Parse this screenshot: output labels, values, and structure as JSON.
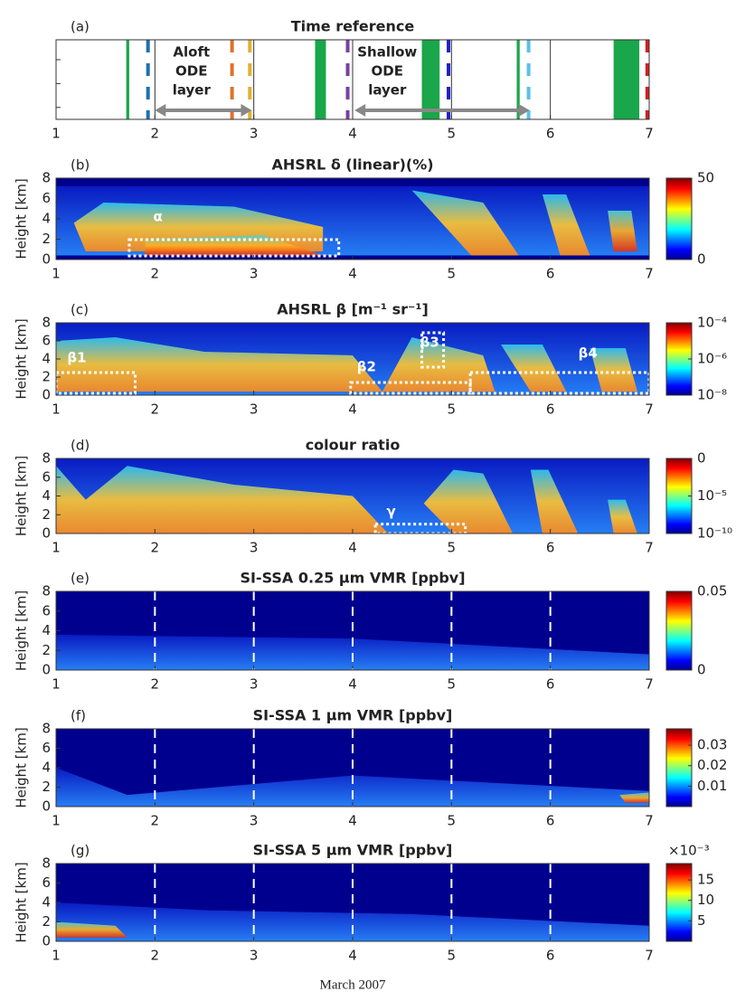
{
  "chart_data": [
    {
      "type": "timeline",
      "panel_label": "(a)",
      "title": "Time reference",
      "xlim": [
        1,
        7
      ],
      "xticks": [
        1,
        2,
        3,
        4,
        5,
        6,
        7
      ],
      "grid": true,
      "green_bands": [
        [
          1.71,
          1.74
        ],
        [
          3.62,
          3.73
        ],
        [
          4.7,
          4.88
        ],
        [
          5.66,
          5.69
        ],
        [
          6.64,
          6.9
        ]
      ],
      "band_color": "#1aa64a",
      "dashed_lines": [
        {
          "x": 1.93,
          "color": "#1f6fb0"
        },
        {
          "x": 2.78,
          "color": "#e0702a"
        },
        {
          "x": 2.96,
          "color": "#e0b030"
        },
        {
          "x": 3.95,
          "color": "#7b3fa0"
        },
        {
          "x": 4.97,
          "color": "#2020c8"
        },
        {
          "x": 5.78,
          "color": "#5bc0e8"
        },
        {
          "x": 6.98,
          "color": "#d02020"
        }
      ],
      "arrows": [
        [
          2.0,
          2.98
        ],
        [
          4.02,
          5.79
        ]
      ],
      "annotations": [
        {
          "lines": [
            "Aloft",
            "ODE",
            "layer"
          ],
          "x": 2.37
        },
        {
          "lines": [
            "Shallow",
            "ODE",
            "layer"
          ],
          "x": 4.35
        }
      ]
    },
    {
      "type": "heatmap",
      "panel_label": "(b)",
      "title": "AHSRL δ (linear)(%)",
      "ylabel": "Height [km]",
      "xlim": [
        1,
        7
      ],
      "xticks": [
        1,
        2,
        3,
        4,
        5,
        6,
        7
      ],
      "ylim": [
        0,
        8
      ],
      "yticks": [
        0,
        2,
        4,
        6,
        8
      ],
      "clim": [
        0,
        50
      ],
      "cticks": [
        0,
        50
      ],
      "annotations": [
        {
          "text": "α",
          "x": 2.03,
          "y": 4.2
        }
      ],
      "boxes": [
        [
          1.74,
          3.86,
          0.36,
          1.96
        ]
      ]
    },
    {
      "type": "heatmap",
      "panel_label": "(c)",
      "title": "AHSRL β [m⁻¹ sr⁻¹]",
      "ylabel": "Height [km]",
      "xlim": [
        1,
        7
      ],
      "xticks": [
        1,
        2,
        3,
        4,
        5,
        6,
        7
      ],
      "ylim": [
        0,
        8
      ],
      "yticks": [
        0,
        2,
        4,
        6,
        8
      ],
      "clim": [
        1e-08,
        0.0001
      ],
      "colorbar_log": true,
      "cticks": [
        {
          "value": 0.0001,
          "label": "10⁻⁴"
        },
        {
          "value": 1e-06,
          "label": "10⁻⁶"
        },
        {
          "value": 1e-08,
          "label": "10⁻⁸"
        }
      ],
      "annotations": [
        {
          "text": "β1",
          "x": 1.21,
          "y": 4.1
        },
        {
          "text": "β2",
          "x": 4.14,
          "y": 3.1
        },
        {
          "text": "β3",
          "x": 4.78,
          "y": 5.8
        },
        {
          "text": "β4",
          "x": 6.38,
          "y": 4.6
        }
      ],
      "boxes": [
        [
          1.0,
          1.8,
          0.2,
          2.5
        ],
        [
          3.98,
          5.19,
          0.2,
          1.4
        ],
        [
          4.7,
          4.92,
          3.1,
          6.9
        ],
        [
          5.19,
          7.0,
          0.2,
          2.5
        ]
      ]
    },
    {
      "type": "heatmap",
      "panel_label": "(d)",
      "title": "colour ratio",
      "ylabel": "Height [km]",
      "xlim": [
        1,
        7
      ],
      "xticks": [
        1,
        2,
        3,
        4,
        5,
        6,
        7
      ],
      "ylim": [
        0,
        8
      ],
      "yticks": [
        0,
        2,
        4,
        6,
        8
      ],
      "clim": [
        -10,
        0
      ],
      "cticks": [
        0,
        {
          "value": -5,
          "label": "10⁻⁵"
        },
        {
          "value": -10,
          "label": "10⁻¹⁰"
        }
      ],
      "annotations": [
        {
          "text": "γ",
          "x": 4.39,
          "y": 2.3
        }
      ],
      "boxes": [
        [
          4.23,
          5.14,
          0.0,
          1.0
        ]
      ]
    },
    {
      "type": "heatmap",
      "panel_label": "(e)",
      "title": "SI-SSA 0.25 μm VMR [ppbv]",
      "ylabel": "Height [km]",
      "xlim": [
        1,
        7
      ],
      "xticks": [
        1,
        2,
        3,
        4,
        5,
        6,
        7
      ],
      "ylim": [
        0,
        8
      ],
      "yticks": [
        0,
        2,
        4,
        6,
        8
      ],
      "clim": [
        0,
        0.05
      ],
      "cticks": [
        0,
        0.05
      ],
      "day_lines": true
    },
    {
      "type": "heatmap",
      "panel_label": "(f)",
      "title": "SI-SSA 1 μm VMR [ppbv]",
      "ylabel": "Height [km]",
      "xlim": [
        1,
        7
      ],
      "xticks": [
        1,
        2,
        3,
        4,
        5,
        6,
        7
      ],
      "ylim": [
        0,
        8
      ],
      "yticks": [
        0,
        2,
        4,
        6,
        8
      ],
      "clim": [
        0,
        0.038
      ],
      "cticks": [
        0.01,
        0.02,
        0.03
      ],
      "day_lines": true
    },
    {
      "type": "heatmap",
      "panel_label": "(g)",
      "title": "SI-SSA 5 μm VMR [ppbv]",
      "ylabel": "Height [km]",
      "xlim": [
        1,
        7
      ],
      "xticks": [
        1,
        2,
        3,
        4,
        5,
        6,
        7
      ],
      "ylim": [
        0,
        8
      ],
      "yticks": [
        0,
        2,
        4,
        6,
        8
      ],
      "clim": [
        0,
        19
      ],
      "cticks": [
        5,
        10,
        15
      ],
      "colorbar_multiplier": "×10⁻³",
      "day_lines": true,
      "xlabel": "March 2007"
    }
  ]
}
